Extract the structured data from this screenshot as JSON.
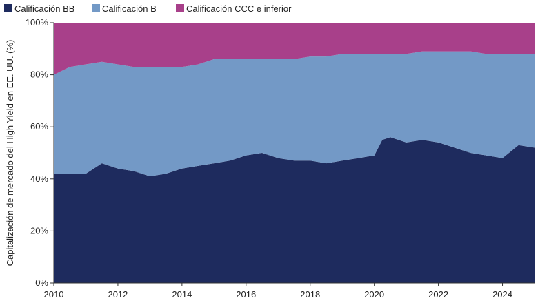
{
  "chart_data": {
    "type": "area",
    "stacked": true,
    "ylabel": "Capitalización de mercado del High Yield en EE. UU. (%)",
    "xlabel": "",
    "title": "",
    "ylim": [
      0,
      100
    ],
    "xlim": [
      2010,
      2025
    ],
    "x_ticks": [
      2010,
      2012,
      2014,
      2016,
      2018,
      2020,
      2022,
      2024
    ],
    "x_tick_labels": [
      "2010",
      "2012",
      "2014",
      "2016",
      "2018",
      "2020",
      "2022",
      "2024"
    ],
    "y_ticks": [
      0,
      20,
      40,
      60,
      80,
      100
    ],
    "y_tick_labels": [
      "0%",
      "20%",
      "40%",
      "60%",
      "80%",
      "100%"
    ],
    "legend_position": "top-left",
    "grid": false,
    "x": [
      2010.0,
      2010.5,
      2011.0,
      2011.5,
      2012.0,
      2012.5,
      2013.0,
      2013.5,
      2014.0,
      2014.5,
      2015.0,
      2015.5,
      2016.0,
      2016.5,
      2017.0,
      2017.5,
      2018.0,
      2018.5,
      2019.0,
      2019.5,
      2020.0,
      2020.25,
      2020.5,
      2021.0,
      2021.5,
      2022.0,
      2022.5,
      2023.0,
      2023.5,
      2024.0,
      2024.5,
      2025.0
    ],
    "series": [
      {
        "name": "Calificación BB",
        "color": "#1e2b5e",
        "values": [
          42,
          42,
          42,
          46,
          44,
          43,
          41,
          42,
          44,
          45,
          46,
          47,
          49,
          50,
          48,
          47,
          47,
          46,
          47,
          48,
          49,
          55,
          56,
          54,
          55,
          54,
          52,
          50,
          49,
          48,
          53,
          52
        ]
      },
      {
        "name": "Calificación B",
        "color": "#7399c6",
        "values": [
          38,
          41,
          42,
          39,
          40,
          40,
          42,
          41,
          39,
          39,
          40,
          39,
          37,
          36,
          38,
          39,
          40,
          41,
          41,
          40,
          39,
          33,
          32,
          34,
          34,
          35,
          37,
          39,
          39,
          40,
          35,
          36
        ]
      },
      {
        "name": "Calificación CCC e inferior",
        "color": "#a8408a",
        "values": [
          20,
          17,
          16,
          15,
          16,
          17,
          17,
          17,
          17,
          16,
          14,
          14,
          14,
          14,
          14,
          14,
          13,
          13,
          12,
          12,
          12,
          12,
          12,
          12,
          11,
          11,
          11,
          11,
          12,
          12,
          12,
          12
        ]
      }
    ]
  }
}
